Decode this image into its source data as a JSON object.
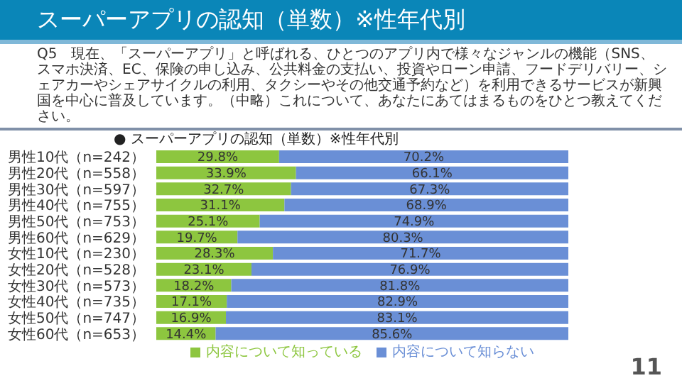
{
  "chart_data": {
    "type": "bar",
    "orientation": "horizontal",
    "stacked": true,
    "title": "スーパーアプリの認知（単数）※性年代別",
    "subtitle": "Q5　現在、「スーパーアプリ」と呼ばれる、ひとつのアプリ内で様々なジャンルの機能（SNS、スマホ決済、EC、保険の申し込み、公共料金の支払い、投資やローン申請、フードデリバリー、シェアカーやシェアサイクルの利用、タクシーやその他交通予約など）を利用できるサービスが新興国を中心に普及しています。（中略）これについて、あなたにあてはまるものをひとつ教えてください。",
    "annotations": [
      "● スーパーアプリの認知（単数）※性年代別",
      "11"
    ],
    "categories": [
      "男性10代（n=242）",
      "男性20代（n=558）",
      "男性30代（n=597）",
      "男性40代（n=755）",
      "男性50代（n=753）",
      "男性60代（n=629）",
      "女性10代（n=230）",
      "女性20代（n=528）",
      "女性30代（n=573）",
      "女性40代（n=735）",
      "女性50代（n=747）",
      "女性60代（n=653）"
    ],
    "series": [
      {
        "name": "内容について知っている",
        "color": "#8dc63f",
        "values": [
          29.8,
          33.9,
          32.7,
          31.1,
          25.1,
          19.7,
          28.3,
          23.1,
          18.2,
          17.1,
          16.9,
          14.4
        ],
        "value_labels": [
          "29.8%",
          "33.9%",
          "32.7%",
          "31.1%",
          "25.1%",
          "19.7%",
          "28.3%",
          "23.1%",
          "18.2%",
          "17.1%",
          "16.9%",
          "14.4%"
        ]
      },
      {
        "name": "内容について知らない",
        "color": "#6a8fd6",
        "values": [
          70.2,
          66.1,
          67.3,
          68.9,
          74.9,
          80.3,
          71.7,
          76.9,
          81.8,
          82.9,
          83.1,
          85.6
        ],
        "value_labels": [
          "70.2%",
          "66.1%",
          "67.3%",
          "68.9%",
          "74.9%",
          "80.3%",
          "71.7%",
          "76.9%",
          "81.8%",
          "82.9%",
          "83.1%",
          "85.6%"
        ]
      }
    ],
    "legend": "bottom",
    "tick_labels": "y"
  }
}
